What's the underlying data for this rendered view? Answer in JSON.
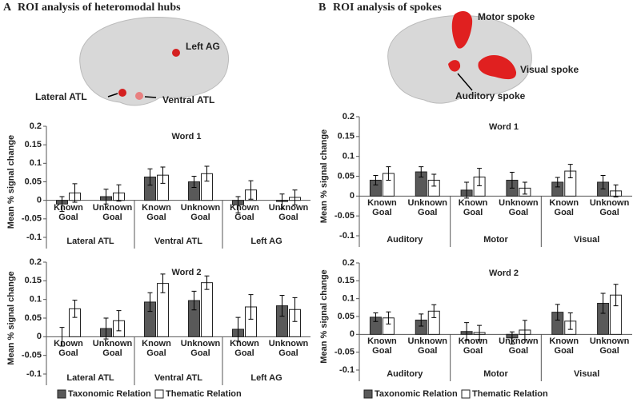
{
  "panels": [
    {
      "label": "A",
      "title": "ROI analysis of heteromodal hubs",
      "brain_labels": [
        "Left AG",
        "Lateral ATL",
        "Ventral ATL"
      ]
    },
    {
      "label": "B",
      "title": "ROI analysis of spokes",
      "brain_labels": [
        "Motor spoke",
        "Visual spoke",
        "Auditory spoke"
      ]
    }
  ],
  "chart_data": [
    {
      "type": "bar",
      "title": "Word 1",
      "ylabel": "Mean % signal change",
      "categories": [
        "Known Goal",
        "Unknown Goal",
        "Known Goal",
        "Unknown Goal",
        "Known Goal",
        "Unknown Goal"
      ],
      "groups": [
        "Lateral ATL",
        "Ventral ATL",
        "Left AG"
      ],
      "series": [
        {
          "name": "Taxonomic Relation",
          "color": "#595959",
          "values": [
            -0.01,
            0.01,
            0.063,
            0.05,
            -0.012,
            -0.003
          ],
          "errors": [
            0.02,
            0.02,
            0.022,
            0.015,
            0.022,
            0.02
          ]
        },
        {
          "name": "Thematic Relation",
          "color": "#ffffff",
          "values": [
            0.02,
            0.02,
            0.068,
            0.072,
            0.028,
            0.008
          ],
          "errors": [
            0.025,
            0.022,
            0.022,
            0.02,
            0.025,
            0.02
          ]
        }
      ],
      "ylim": [
        -0.1,
        0.2
      ],
      "yticks": [
        -0.1,
        -0.05,
        0,
        0.05,
        0.1,
        0.15,
        0.2
      ]
    },
    {
      "type": "bar",
      "title": "Word 2",
      "ylabel": "Mean % signal change",
      "categories": [
        "Known Goal",
        "Unknown Goal",
        "Known Goal",
        "Unknown Goal",
        "Known Goal",
        "Unknown Goal"
      ],
      "groups": [
        "Lateral ATL",
        "Ventral ATL",
        "Left AG"
      ],
      "series": [
        {
          "name": "Taxonomic Relation",
          "color": "#595959",
          "values": [
            0,
            0.022,
            0.093,
            0.097,
            0.02,
            0.083
          ],
          "errors": [
            0.025,
            0.028,
            0.025,
            0.025,
            0.032,
            0.028
          ]
        },
        {
          "name": "Thematic Relation",
          "color": "#ffffff",
          "values": [
            0.075,
            0.043,
            0.143,
            0.145,
            0.08,
            0.073
          ],
          "errors": [
            0.023,
            0.027,
            0.025,
            0.018,
            0.033,
            0.032
          ]
        }
      ],
      "ylim": [
        -0.1,
        0.2
      ],
      "yticks": [
        -0.1,
        -0.05,
        0,
        0.05,
        0.1,
        0.15,
        0.2
      ]
    },
    {
      "type": "bar",
      "title": "Word 1",
      "ylabel": "Mean % signal change",
      "categories": [
        "Known Goal",
        "Unknown Goal",
        "Known Goal",
        "Unknown Goal",
        "Known Goal",
        "Unknown Goal"
      ],
      "groups": [
        "Auditory",
        "Motor",
        "Visual"
      ],
      "series": [
        {
          "name": "Taxonomic Relation",
          "color": "#595959",
          "values": [
            0.04,
            0.061,
            0.015,
            0.04,
            0.035,
            0.035
          ],
          "errors": [
            0.012,
            0.013,
            0.02,
            0.02,
            0.012,
            0.017
          ]
        },
        {
          "name": "Thematic Relation",
          "color": "#ffffff",
          "values": [
            0.057,
            0.04,
            0.048,
            0.02,
            0.063,
            0.013
          ],
          "errors": [
            0.017,
            0.015,
            0.022,
            0.015,
            0.017,
            0.015
          ]
        }
      ],
      "ylim": [
        -0.1,
        0.2
      ],
      "yticks": [
        -0.1,
        -0.05,
        0,
        0.05,
        0.1,
        0.15,
        0.2
      ]
    },
    {
      "type": "bar",
      "title": "Word 2",
      "ylabel": "Mean % signal change",
      "categories": [
        "Known Goal",
        "Unknown Goal",
        "Known Goal",
        "Unknown Goal",
        "Known Goal",
        "Unknown Goal"
      ],
      "groups": [
        "Auditory",
        "Motor",
        "Visual"
      ],
      "series": [
        {
          "name": "Taxonomic Relation",
          "color": "#595959",
          "values": [
            0.048,
            0.04,
            0.008,
            -0.01,
            0.062,
            0.087
          ],
          "errors": [
            0.012,
            0.017,
            0.025,
            0.017,
            0.022,
            0.028
          ]
        },
        {
          "name": "Thematic Relation",
          "color": "#ffffff",
          "values": [
            0.046,
            0.065,
            0.005,
            0.012,
            0.037,
            0.11
          ],
          "errors": [
            0.017,
            0.018,
            0.02,
            0.027,
            0.023,
            0.03
          ]
        }
      ],
      "ylim": [
        -0.1,
        0.2
      ],
      "yticks": [
        -0.1,
        -0.05,
        0,
        0.05,
        0.1,
        0.15,
        0.2
      ]
    }
  ]
}
